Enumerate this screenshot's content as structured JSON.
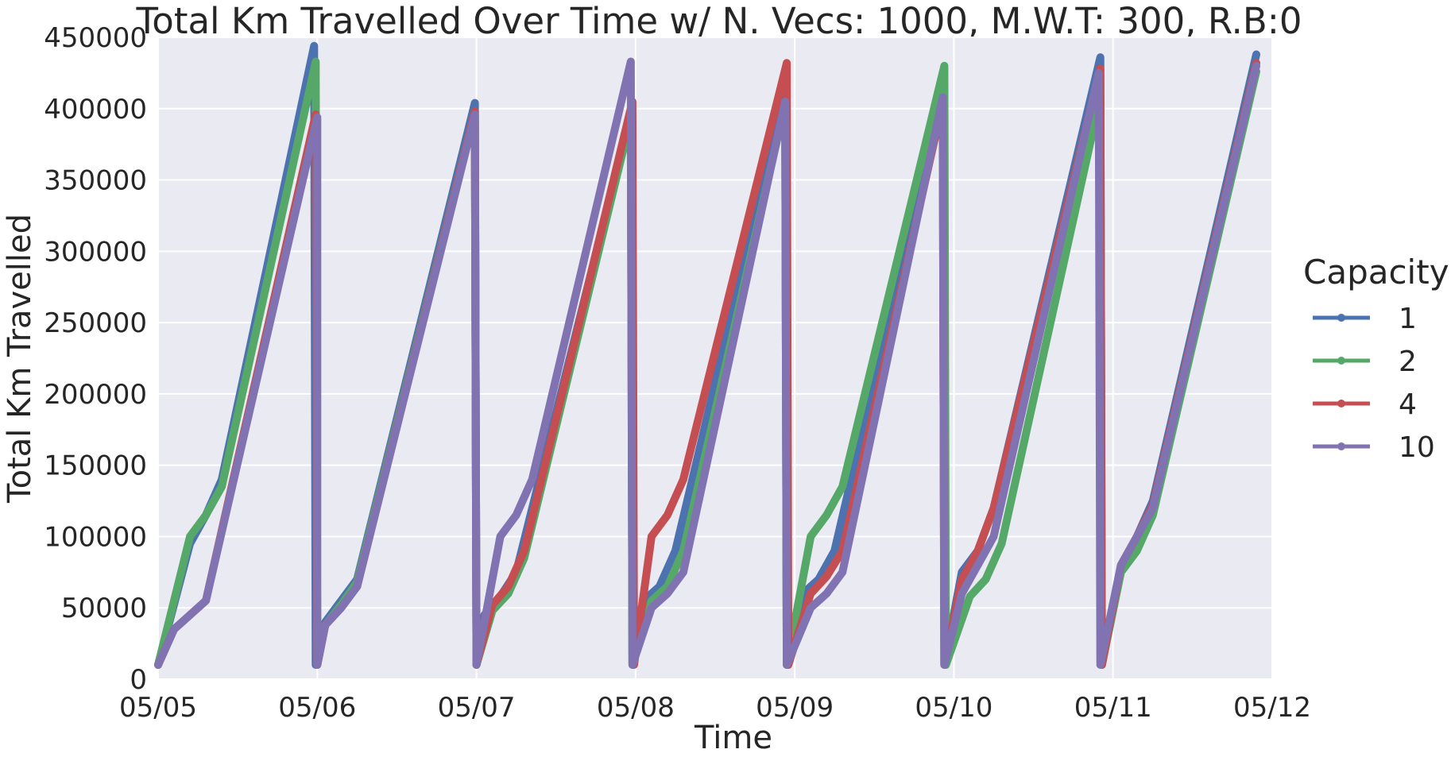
{
  "chart_data": {
    "type": "line",
    "title": "Total Km Travelled Over Time w/ N. Vecs: 1000, M.W.T: 300, R.B:0",
    "xlabel": "Time",
    "ylabel": "Total Km Travelled",
    "xlim": [
      0,
      7
    ],
    "ylim": [
      0,
      450000
    ],
    "x_unit": "days since 05/05",
    "x_ticks": [
      0,
      1,
      2,
      3,
      4,
      5,
      6,
      7
    ],
    "x_tick_labels": [
      "05/05",
      "05/06",
      "05/07",
      "05/08",
      "05/09",
      "05/10",
      "05/11",
      "05/12"
    ],
    "y_ticks": [
      0,
      50000,
      100000,
      150000,
      200000,
      250000,
      300000,
      350000,
      400000,
      450000
    ],
    "y_tick_labels": [
      "0",
      "50000",
      "100000",
      "150000",
      "200000",
      "250000",
      "300000",
      "350000",
      "400000",
      "450000"
    ],
    "grid": true,
    "legend": {
      "title": "Capacity",
      "placement": "right"
    },
    "series": [
      {
        "name": "1",
        "color": "#4C72B0",
        "x": [
          0,
          0.2,
          0.3,
          0.4,
          0.98,
          0.99,
          1.05,
          1.15,
          1.25,
          1.99,
          2.0,
          2.05,
          2.15,
          2.25,
          2.97,
          2.98,
          3.05,
          3.15,
          3.25,
          3.94,
          3.95,
          4.05,
          4.15,
          4.25,
          4.93,
          4.94,
          5.05,
          5.15,
          5.25,
          5.92,
          5.93,
          6.05,
          6.15,
          6.25,
          6.9
        ],
        "y": [
          10000,
          95000,
          115000,
          140000,
          444000,
          10000,
          40000,
          55000,
          70000,
          404000,
          10000,
          45000,
          58000,
          75000,
          396000,
          10000,
          55000,
          65000,
          90000,
          414000,
          10000,
          60000,
          70000,
          90000,
          416000,
          10000,
          75000,
          90000,
          120000,
          436000,
          10000,
          80000,
          100000,
          125000,
          438000
        ]
      },
      {
        "name": "2",
        "color": "#55A868",
        "x": [
          0,
          0.2,
          0.3,
          0.4,
          0.99,
          1.0,
          1.05,
          1.15,
          1.25,
          1.99,
          2.0,
          2.1,
          2.2,
          2.3,
          2.97,
          2.98,
          3.1,
          3.2,
          3.3,
          3.94,
          3.95,
          4.1,
          4.2,
          4.3,
          4.94,
          4.95,
          5.1,
          5.2,
          5.3,
          5.92,
          5.93,
          6.05,
          6.15,
          6.25,
          6.9
        ],
        "y": [
          10000,
          100000,
          115000,
          135000,
          433000,
          10000,
          38000,
          52000,
          68000,
          398000,
          10000,
          48000,
          60000,
          85000,
          393000,
          10000,
          55000,
          65000,
          90000,
          403000,
          10000,
          100000,
          115000,
          135000,
          430000,
          10000,
          58000,
          70000,
          95000,
          408000,
          10000,
          75000,
          90000,
          115000,
          426000
        ]
      },
      {
        "name": "4",
        "color": "#C44E52",
        "x": [
          0,
          0.1,
          0.2,
          0.3,
          0.99,
          1.0,
          1.05,
          1.15,
          1.25,
          1.99,
          2.0,
          2.1,
          2.2,
          2.3,
          2.98,
          2.99,
          3.1,
          3.2,
          3.3,
          3.95,
          3.96,
          4.1,
          4.2,
          4.3,
          4.93,
          4.94,
          5.05,
          5.15,
          5.25,
          5.92,
          5.93,
          6.05,
          6.15,
          6.25,
          6.9
        ],
        "y": [
          10000,
          35000,
          45000,
          55000,
          396000,
          10000,
          38000,
          50000,
          65000,
          398000,
          10000,
          52000,
          65000,
          90000,
          405000,
          10000,
          100000,
          115000,
          140000,
          432000,
          10000,
          60000,
          72000,
          90000,
          404000,
          10000,
          70000,
          90000,
          120000,
          428000,
          10000,
          80000,
          100000,
          122000,
          432000
        ]
      },
      {
        "name": "10",
        "color": "#8172B2",
        "x": [
          0,
          0.1,
          0.2,
          0.3,
          1.0,
          1.0,
          1.05,
          1.15,
          1.25,
          1.99,
          2.0,
          2.15,
          2.25,
          2.35,
          2.97,
          2.98,
          3.1,
          3.2,
          3.3,
          3.94,
          3.95,
          4.1,
          4.2,
          4.3,
          4.93,
          4.94,
          5.05,
          5.15,
          5.25,
          5.91,
          5.92,
          6.05,
          6.15,
          6.25,
          6.9
        ],
        "y": [
          10000,
          35000,
          45000,
          55000,
          394000,
          10000,
          38000,
          50000,
          65000,
          396000,
          10000,
          100000,
          115000,
          140000,
          433000,
          10000,
          50000,
          60000,
          75000,
          405000,
          10000,
          50000,
          60000,
          75000,
          408000,
          10000,
          60000,
          80000,
          100000,
          425000,
          10000,
          80000,
          100000,
          120000,
          430000
        ]
      }
    ]
  }
}
